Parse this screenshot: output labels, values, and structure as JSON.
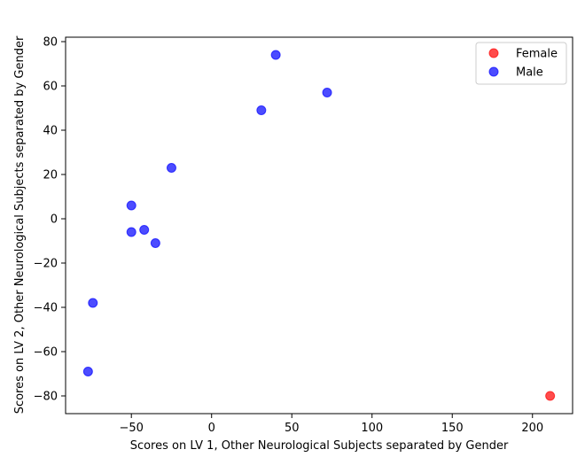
{
  "chart_data": {
    "type": "scatter",
    "title": "",
    "xlabel": "Scores on LV 1, Other Neurological Subjects separated by Gender",
    "ylabel": "Scores on LV 2, Other Neurological Subjects separated by Gender",
    "xlim": [
      -91,
      225
    ],
    "ylim": [
      -88,
      82
    ],
    "xticks": [
      -50,
      0,
      50,
      100,
      150,
      200
    ],
    "yticks": [
      -80,
      -60,
      -40,
      -20,
      0,
      20,
      40,
      60,
      80
    ],
    "xtick_labels": [
      "−50",
      "0",
      "50",
      "100",
      "150",
      "200"
    ],
    "ytick_labels": [
      "−80",
      "−60",
      "−40",
      "−20",
      "0",
      "20",
      "40",
      "60",
      "80"
    ],
    "grid": false,
    "legend_position": "top-right",
    "series": [
      {
        "name": "Female",
        "color": "#ff0000",
        "points": [
          {
            "x": 211,
            "y": -80
          }
        ]
      },
      {
        "name": "Male",
        "color": "#0000ff",
        "points": [
          {
            "x": 40,
            "y": 74
          },
          {
            "x": 72,
            "y": 57
          },
          {
            "x": 31,
            "y": 49
          },
          {
            "x": -25,
            "y": 23
          },
          {
            "x": -50,
            "y": 6
          },
          {
            "x": -50,
            "y": -6
          },
          {
            "x": -42,
            "y": -5
          },
          {
            "x": -35,
            "y": -11
          },
          {
            "x": -74,
            "y": -38
          },
          {
            "x": -77,
            "y": -69
          }
        ]
      }
    ]
  }
}
